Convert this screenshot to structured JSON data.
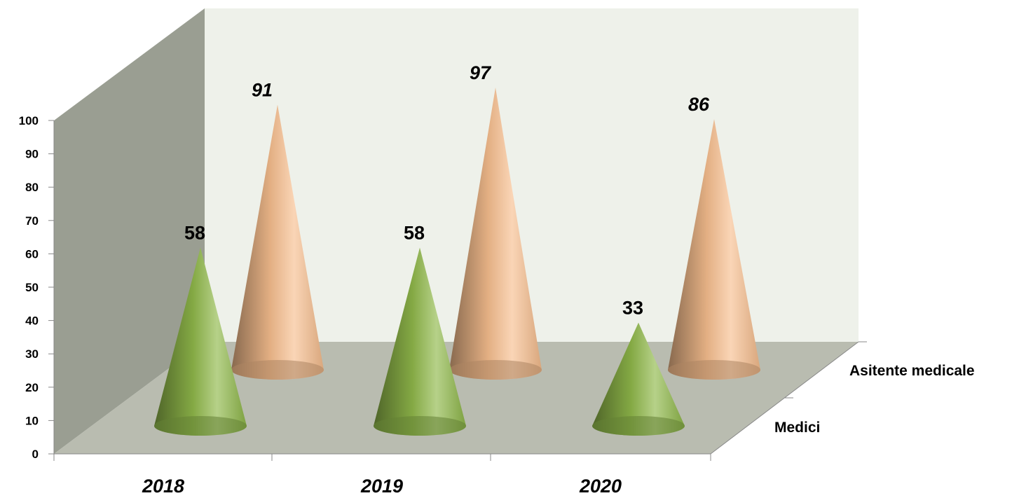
{
  "chart_data": {
    "type": "bar",
    "shape": "cone-3d",
    "categories": [
      "2018",
      "2019",
      "2020"
    ],
    "series": [
      {
        "name": "Medici",
        "values": [
          58,
          58,
          33
        ],
        "color": "#8FB84A",
        "label_style": "bold"
      },
      {
        "name": "Asitente medicale",
        "values": [
          91,
          97,
          86
        ],
        "color": "#F7BE8E",
        "label_style": "bold-italic"
      }
    ],
    "y_ticks": [
      "0",
      "10",
      "20",
      "30",
      "40",
      "50",
      "60",
      "70",
      "80",
      "90",
      "100"
    ],
    "ylim": [
      0,
      100
    ],
    "title": "",
    "xlabel": "",
    "ylabel": "",
    "grid": false,
    "legend": "depth-axis labels on right",
    "colors": {
      "wall_side": "#9A9E92",
      "wall_back": "#EEF1EA",
      "floor": "#B9BCB0"
    }
  }
}
